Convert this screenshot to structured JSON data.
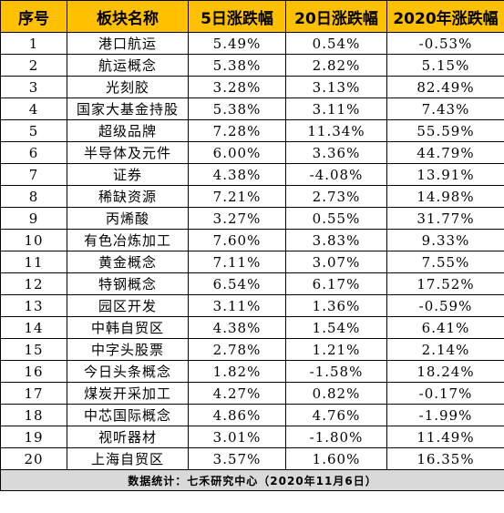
{
  "headers": [
    "序号",
    "板块名称",
    "5日涨跌幅",
    "20日涨跌幅",
    "2020年涨跌幅"
  ],
  "rows": [
    {
      "no": "1",
      "name": "港口航运",
      "d5": "5.49%",
      "d20": "0.54%",
      "ytd": "-0.53%"
    },
    {
      "no": "2",
      "name": "航运概念",
      "d5": "5.38%",
      "d20": "2.82%",
      "ytd": "5.15%"
    },
    {
      "no": "3",
      "name": "光刻胶",
      "d5": "3.28%",
      "d20": "3.13%",
      "ytd": "82.49%"
    },
    {
      "no": "4",
      "name": "国家大基金持股",
      "d5": "5.38%",
      "d20": "3.11%",
      "ytd": "7.43%"
    },
    {
      "no": "5",
      "name": "超级品牌",
      "d5": "7.28%",
      "d20": "11.34%",
      "ytd": "55.59%"
    },
    {
      "no": "6",
      "name": "半导体及元件",
      "d5": "6.00%",
      "d20": "3.36%",
      "ytd": "44.79%"
    },
    {
      "no": "7",
      "name": "证券",
      "d5": "4.38%",
      "d20": "-4.08%",
      "ytd": "13.91%"
    },
    {
      "no": "8",
      "name": "稀缺资源",
      "d5": "7.21%",
      "d20": "2.73%",
      "ytd": "14.98%"
    },
    {
      "no": "9",
      "name": "丙烯酸",
      "d5": "3.27%",
      "d20": "0.55%",
      "ytd": "31.77%"
    },
    {
      "no": "10",
      "name": "有色冶炼加工",
      "d5": "7.60%",
      "d20": "3.83%",
      "ytd": "9.33%"
    },
    {
      "no": "11",
      "name": "黄金概念",
      "d5": "7.11%",
      "d20": "3.07%",
      "ytd": "7.55%"
    },
    {
      "no": "12",
      "name": "特钢概念",
      "d5": "6.54%",
      "d20": "6.17%",
      "ytd": "17.52%"
    },
    {
      "no": "13",
      "name": "园区开发",
      "d5": "3.11%",
      "d20": "1.36%",
      "ytd": "-0.59%"
    },
    {
      "no": "14",
      "name": "中韩自贸区",
      "d5": "4.38%",
      "d20": "1.54%",
      "ytd": "6.41%"
    },
    {
      "no": "15",
      "name": "中字头股票",
      "d5": "2.78%",
      "d20": "1.21%",
      "ytd": "2.14%"
    },
    {
      "no": "16",
      "name": "今日头条概念",
      "d5": "1.82%",
      "d20": "-1.58%",
      "ytd": "18.24%"
    },
    {
      "no": "17",
      "name": "煤炭开采加工",
      "d5": "4.27%",
      "d20": "0.82%",
      "ytd": "-0.17%"
    },
    {
      "no": "18",
      "name": "中芯国际概念",
      "d5": "4.86%",
      "d20": "4.76%",
      "ytd": "-1.99%"
    },
    {
      "no": "19",
      "name": "视听器材",
      "d5": "3.01%",
      "d20": "-1.80%",
      "ytd": "11.49%"
    },
    {
      "no": "20",
      "name": "上海自贸区",
      "d5": "3.57%",
      "d20": "1.60%",
      "ytd": "16.35%"
    }
  ],
  "footer": "数据统计：七禾研究中心（2020年11月6日）",
  "colors": {
    "header_bg": "#ffc000",
    "footer_bg": "#d9d9d9",
    "border": "#000000"
  }
}
